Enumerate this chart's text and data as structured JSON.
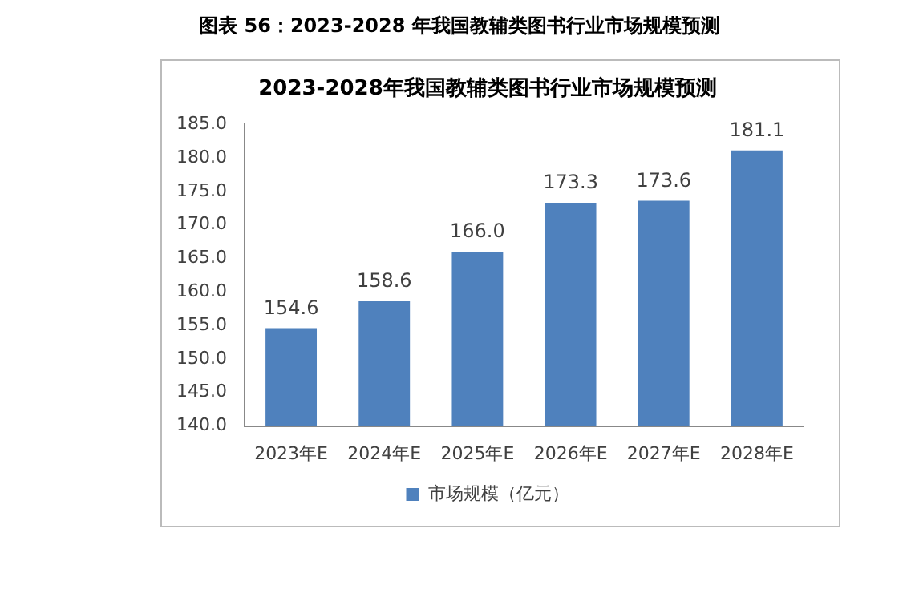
{
  "chart_data": {
    "type": "bar",
    "title": "图表 56：2023-2028 年我国教辅类图书行业市场规模预测",
    "subtitle": "2023-2028年我国教辅类图书行业市场规模预测",
    "categories": [
      "2023年E",
      "2024年E",
      "2025年E",
      "2026年E",
      "2027年E",
      "2028年E"
    ],
    "series": [
      {
        "name": "市场规模（亿元）",
        "color": "#4f81bd",
        "values": [
          154.6,
          158.6,
          166.0,
          173.3,
          173.6,
          181.1
        ]
      }
    ],
    "ylim": [
      140,
      185
    ],
    "yticks": [
      {
        "value": 140,
        "label": "140.0"
      },
      {
        "value": 145,
        "label": "145.0"
      },
      {
        "value": 150,
        "label": "150.0"
      },
      {
        "value": 155,
        "label": "155.0"
      },
      {
        "value": 160,
        "label": "160.0"
      },
      {
        "value": 165,
        "label": "165.0"
      },
      {
        "value": 170,
        "label": "170.0"
      },
      {
        "value": 175,
        "label": "175.0"
      },
      {
        "value": 180,
        "label": "180.0"
      },
      {
        "value": 185,
        "label": "185.0"
      }
    ],
    "value_labels": [
      "154.6",
      "158.6",
      "166.0",
      "173.3",
      "173.6",
      "181.1"
    ],
    "grid": false,
    "legend": "bottom"
  }
}
